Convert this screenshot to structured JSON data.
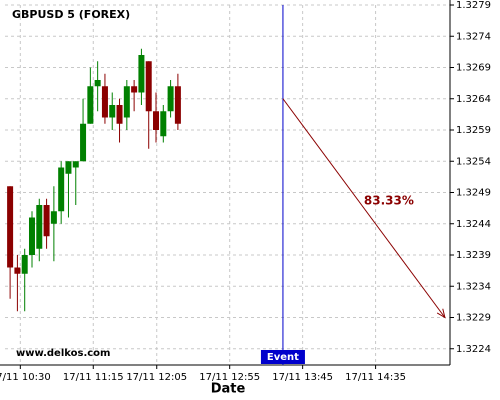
{
  "chart_data": {
    "type": "candlestick",
    "title": "GBPUSD 5 (FOREX)",
    "xlabel": "Date",
    "watermark": "www.delkos.com",
    "event_label": "Event",
    "prediction_label": "83.33%",
    "x": [
      0,
      1,
      2,
      3,
      4,
      5,
      6,
      7,
      8,
      9,
      10,
      11,
      12,
      13,
      14,
      15,
      16,
      17,
      18,
      19,
      20,
      21,
      22,
      23
    ],
    "open": [
      1.325,
      1.3237,
      1.3236,
      1.3239,
      1.324,
      1.3247,
      1.3244,
      1.3246,
      1.3252,
      1.3253,
      1.3254,
      1.326,
      1.3266,
      1.3266,
      1.3261,
      1.3263,
      1.3261,
      1.3266,
      1.3265,
      1.327,
      1.3262,
      1.3258,
      1.3262,
      1.3266
    ],
    "high": [
      1.325,
      1.3239,
      1.324,
      1.3246,
      1.3248,
      1.3248,
      1.325,
      1.3254,
      1.3254,
      1.3254,
      1.3264,
      1.3269,
      1.327,
      1.3268,
      1.3265,
      1.3264,
      1.3267,
      1.3267,
      1.3272,
      1.327,
      1.3265,
      1.3263,
      1.3267,
      1.3268
    ],
    "low": [
      1.3232,
      1.323,
      1.323,
      1.3237,
      1.3238,
      1.324,
      1.3238,
      1.3244,
      1.3245,
      1.3247,
      1.3254,
      1.326,
      1.3262,
      1.326,
      1.3259,
      1.3257,
      1.3259,
      1.3262,
      1.3263,
      1.3256,
      1.3257,
      1.3257,
      1.3261,
      1.3259
    ],
    "close": [
      1.3237,
      1.3236,
      1.3239,
      1.3245,
      1.3247,
      1.3242,
      1.3246,
      1.3253,
      1.3254,
      1.3254,
      1.326,
      1.3266,
      1.3267,
      1.3261,
      1.3263,
      1.326,
      1.3266,
      1.3265,
      1.3271,
      1.3262,
      1.3259,
      1.3262,
      1.3266,
      1.326
    ],
    "up_color": "#008000",
    "down_color": "#8b0000",
    "event_x": 37.4,
    "event_color": "#0000cc",
    "prediction": {
      "x": [
        37.4,
        59.6
      ],
      "values": [
        1.3264,
        1.3229
      ],
      "color": "#8b0000"
    },
    "xlim": [
      -0.7,
      60.3
    ],
    "ylim": [
      1.32214,
      1.3279
    ],
    "xticks": [
      {
        "value": 1.4,
        "label": "17/11 10:30"
      },
      {
        "value": 11.4,
        "label": "17/11 11:15"
      },
      {
        "value": 20.1,
        "label": "17/11 12:05"
      },
      {
        "value": 30.1,
        "label": "17/11 12:55"
      },
      {
        "value": 40.1,
        "label": "17/11 13:45"
      },
      {
        "value": 50.1,
        "label": "17/11 14:35"
      }
    ],
    "yticks": [
      1.3224,
      1.3229,
      1.3234,
      1.3239,
      1.3244,
      1.3249,
      1.3254,
      1.3259,
      1.3264,
      1.3269,
      1.3274,
      1.3279
    ],
    "grid": true
  }
}
